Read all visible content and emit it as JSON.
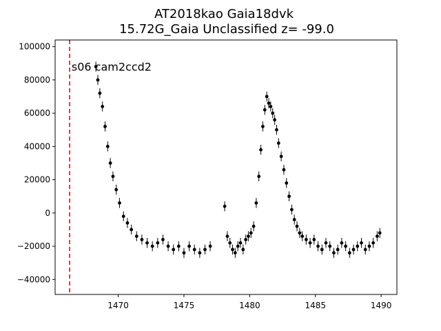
{
  "chart_data": {
    "type": "scatter",
    "title_line1": "AT2018kao  Gaia18dvk",
    "title_line2": "15.72G_Gaia Unclassified z= -99.0",
    "xlabel": "",
    "ylabel": "",
    "xlim": [
      1465.2,
      1491.2
    ],
    "ylim": [
      -49000,
      104000
    ],
    "xticks": [
      1470,
      1475,
      1480,
      1485,
      1490
    ],
    "yticks": [
      -40000,
      -20000,
      0,
      20000,
      40000,
      60000,
      80000,
      100000
    ],
    "xtick_labels": [
      "1470",
      "1475",
      "1480",
      "1485",
      "1490"
    ],
    "ytick_labels": [
      "−40000",
      "−20000",
      "0",
      "20000",
      "40000",
      "60000",
      "80000",
      "100000"
    ],
    "grid": false,
    "marker_color": "#000000",
    "vline": {
      "x": 1466.3,
      "color": "#ff0000",
      "style": "dashed"
    },
    "annotation": {
      "text": "s06 cam2ccd2",
      "x": 1466.4,
      "y": 88000
    },
    "series": [
      {
        "x": [
          1468.3,
          1468.45,
          1468.6,
          1468.8,
          1469.0,
          1469.2,
          1469.4,
          1469.6,
          1469.85,
          1470.1,
          1470.4,
          1470.7,
          1471.0,
          1471.4,
          1471.8,
          1472.2,
          1472.6,
          1473.0,
          1473.4,
          1473.8,
          1474.2,
          1474.6,
          1475.0,
          1475.4,
          1475.8,
          1476.2,
          1476.6,
          1477.0,
          1478.1,
          1478.3,
          1478.5,
          1478.7,
          1478.9,
          1479.1,
          1479.3,
          1479.5,
          1479.7,
          1479.9,
          1480.1,
          1480.3,
          1480.5,
          1480.7,
          1480.85,
          1481.0,
          1481.15,
          1481.3,
          1481.45,
          1481.6,
          1481.75,
          1481.9,
          1482.05,
          1482.2,
          1482.4,
          1482.6,
          1482.8,
          1483.0,
          1483.2,
          1483.4,
          1483.6,
          1483.8,
          1484.0,
          1484.3,
          1484.6,
          1484.9,
          1485.2,
          1485.5,
          1485.8,
          1486.1,
          1486.4,
          1486.7,
          1487.0,
          1487.3,
          1487.6,
          1487.9,
          1488.2,
          1488.5,
          1488.8,
          1489.1,
          1489.4,
          1489.7,
          1489.9
        ],
        "y": [
          88000,
          80000,
          72000,
          64000,
          52000,
          40000,
          30000,
          22000,
          14000,
          6000,
          -2000,
          -6000,
          -10000,
          -14000,
          -16000,
          -18000,
          -20000,
          -18000,
          -16000,
          -20000,
          -22000,
          -20000,
          -24000,
          -20000,
          -22000,
          -24000,
          -22000,
          -20000,
          4000,
          -14000,
          -18000,
          -22000,
          -24000,
          -20000,
          -18000,
          -22000,
          -16000,
          -14000,
          -12000,
          -8000,
          6000,
          22000,
          38000,
          52000,
          62000,
          70000,
          66000,
          64000,
          60000,
          56000,
          50000,
          42000,
          34000,
          26000,
          18000,
          10000,
          2000,
          -4000,
          -8000,
          -12000,
          -14000,
          -16000,
          -18000,
          -16000,
          -20000,
          -22000,
          -18000,
          -20000,
          -24000,
          -22000,
          -18000,
          -20000,
          -24000,
          -22000,
          -20000,
          -18000,
          -22000,
          -20000,
          -18000,
          -14000,
          -12000
        ],
        "yerr": 3000
      }
    ]
  }
}
